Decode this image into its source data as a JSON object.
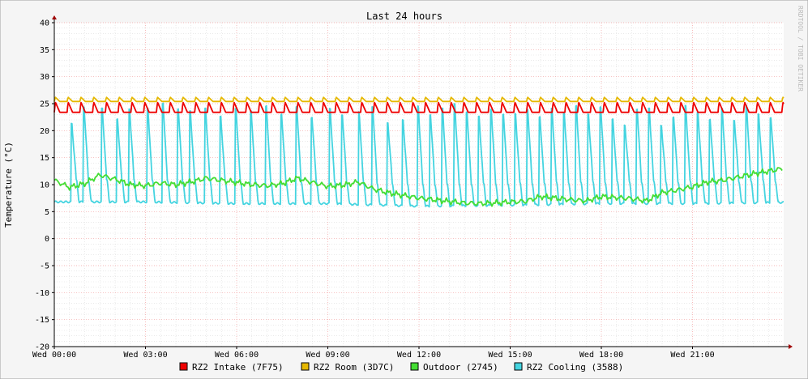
{
  "chart_data": {
    "type": "line",
    "title": "Last 24 hours",
    "ylabel": "Temperature (°C)",
    "watermark": "RRDTOOL / TOBI OETIKER",
    "ylim": [
      -20,
      40
    ],
    "y_ticks": [
      "40",
      "35",
      "30",
      "25",
      "20",
      "15",
      "10",
      "5",
      "0",
      "-5",
      "-10",
      "-15",
      "-20"
    ],
    "x_ticks": [
      "Wed 00:00",
      "Wed 03:00",
      "Wed 06:00",
      "Wed 09:00",
      "Wed 12:00",
      "Wed 15:00",
      "Wed 18:00",
      "Wed 21:00"
    ],
    "xlim_hours": [
      0,
      24
    ],
    "grid": true,
    "legend_position": "bottom",
    "series": [
      {
        "name": "RZ2 Intake (7F75)",
        "color": "#ee0000",
        "base": 23.4,
        "peak": 25.3,
        "period_hours": 0.42
      },
      {
        "name": "RZ2 Room (3D7C)",
        "color": "#e6b800",
        "base": 25.4,
        "peak": 26.2,
        "period_hours": 0.42
      },
      {
        "name": "Outdoor (2745)",
        "color": "#44dd33",
        "x": [
          0,
          0.5,
          1,
          1.5,
          2,
          2.5,
          3,
          3.5,
          4,
          4.5,
          5,
          5.5,
          6,
          6.5,
          7,
          7.5,
          8,
          8.5,
          9,
          9.5,
          10,
          10.5,
          11,
          11.5,
          12,
          12.5,
          13,
          13.5,
          14,
          14.5,
          15,
          15.5,
          16,
          16.5,
          17,
          17.5,
          18,
          18.5,
          19,
          19.5,
          20,
          20.5,
          21,
          21.5,
          22,
          22.5,
          23,
          23.5,
          24
        ],
        "values": [
          10.8,
          9.5,
          10.2,
          11.8,
          11.0,
          10.0,
          9.8,
          10.3,
          10.0,
          10.5,
          11.2,
          10.8,
          10.4,
          10.0,
          9.8,
          10.2,
          11.2,
          10.4,
          9.7,
          9.9,
          10.5,
          9.2,
          8.5,
          8.0,
          7.5,
          7.2,
          6.9,
          6.6,
          6.5,
          6.6,
          6.8,
          6.9,
          7.8,
          7.5,
          7.2,
          7.0,
          7.8,
          7.6,
          7.4,
          7.0,
          8.5,
          9.0,
          9.6,
          10.5,
          10.8,
          11.4,
          12.0,
          12.5,
          13.0
        ]
      },
      {
        "name": "RZ2 Cooling (3588)",
        "color": "#44d4e0",
        "low_x": [
          0,
          3,
          6,
          9,
          12,
          15,
          18,
          21,
          24
        ],
        "low_values": [
          6.8,
          6.8,
          6.5,
          6.5,
          6.0,
          6.2,
          6.5,
          6.5,
          6.7
        ],
        "peak_x": [
          0.55,
          0.95,
          1.55,
          2.05,
          2.45,
          3.05,
          3.55,
          4.05,
          4.45,
          4.95,
          5.45,
          5.95,
          6.45,
          6.95,
          7.45,
          7.95,
          8.45,
          9.05,
          9.45,
          10.0,
          10.45,
          10.95,
          11.45,
          11.95,
          12.35,
          12.75,
          13.15,
          13.55,
          13.95,
          14.35,
          14.75,
          15.15,
          15.55,
          15.95,
          16.35,
          16.75,
          17.15,
          17.55,
          17.95,
          18.35,
          18.75,
          19.15,
          19.55,
          19.95,
          20.35,
          20.75,
          21.15,
          21.55,
          21.95,
          22.35,
          22.75,
          23.15,
          23.55
        ],
        "peak_values": [
          21.2,
          24.5,
          24.0,
          22.0,
          24.0,
          24.0,
          25.0,
          24.0,
          23.5,
          24.0,
          22.5,
          24.0,
          23.5,
          24.5,
          23.0,
          24.5,
          22.5,
          24.0,
          23.0,
          23.5,
          24.5,
          21.5,
          22.0,
          24.5,
          23.0,
          24.0,
          25.0,
          23.5,
          22.5,
          24.0,
          23.0,
          23.0,
          24.0,
          22.5,
          24.0,
          23.5,
          24.5,
          23.0,
          24.5,
          22.0,
          21.0,
          24.0,
          24.0,
          21.0,
          22.5,
          24.5,
          23.5,
          22.0,
          24.0,
          22.0,
          24.5,
          23.0,
          22.5
        ]
      }
    ]
  }
}
